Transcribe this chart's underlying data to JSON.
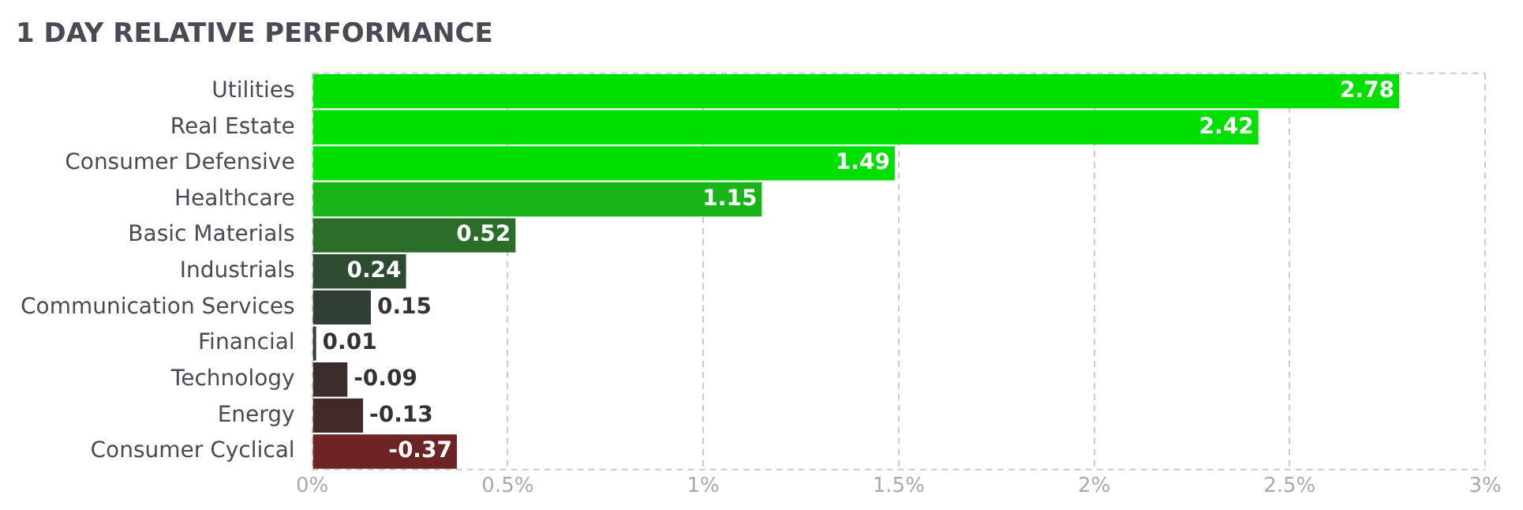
{
  "chart_data": {
    "type": "bar",
    "orientation": "horizontal",
    "title": "1 DAY RELATIVE PERFORMANCE",
    "categories": [
      "Utilities",
      "Real Estate",
      "Consumer Defensive",
      "Healthcare",
      "Basic Materials",
      "Industrials",
      "Communication Services",
      "Financial",
      "Technology",
      "Energy",
      "Consumer Cyclical"
    ],
    "values": [
      2.78,
      2.42,
      1.49,
      1.15,
      0.52,
      0.24,
      0.15,
      0.01,
      -0.09,
      -0.13,
      -0.37
    ],
    "base": [
      0,
      0,
      0,
      0,
      0,
      0,
      0,
      0,
      0.09,
      0.13,
      0.37
    ],
    "colors": [
      "#00e000",
      "#00e000",
      "#00e000",
      "#18b418",
      "#2a6e2a",
      "#2c4b30",
      "#2f3f33",
      "#3a3a3a",
      "#3d2c2c",
      "#432a2a",
      "#6e2424"
    ],
    "xlim": [
      0,
      3
    ],
    "xticks": [
      {
        "value": 0,
        "label": "0%"
      },
      {
        "value": 0.5,
        "label": "0.5%"
      },
      {
        "value": 1,
        "label": "1%"
      },
      {
        "value": 1.5,
        "label": "1.5%"
      },
      {
        "value": 2,
        "label": "2%"
      },
      {
        "value": 2.5,
        "label": "2.5%"
      },
      {
        "value": 3,
        "label": "3%"
      }
    ],
    "grid": "x",
    "data_labels": true,
    "legend": false
  }
}
